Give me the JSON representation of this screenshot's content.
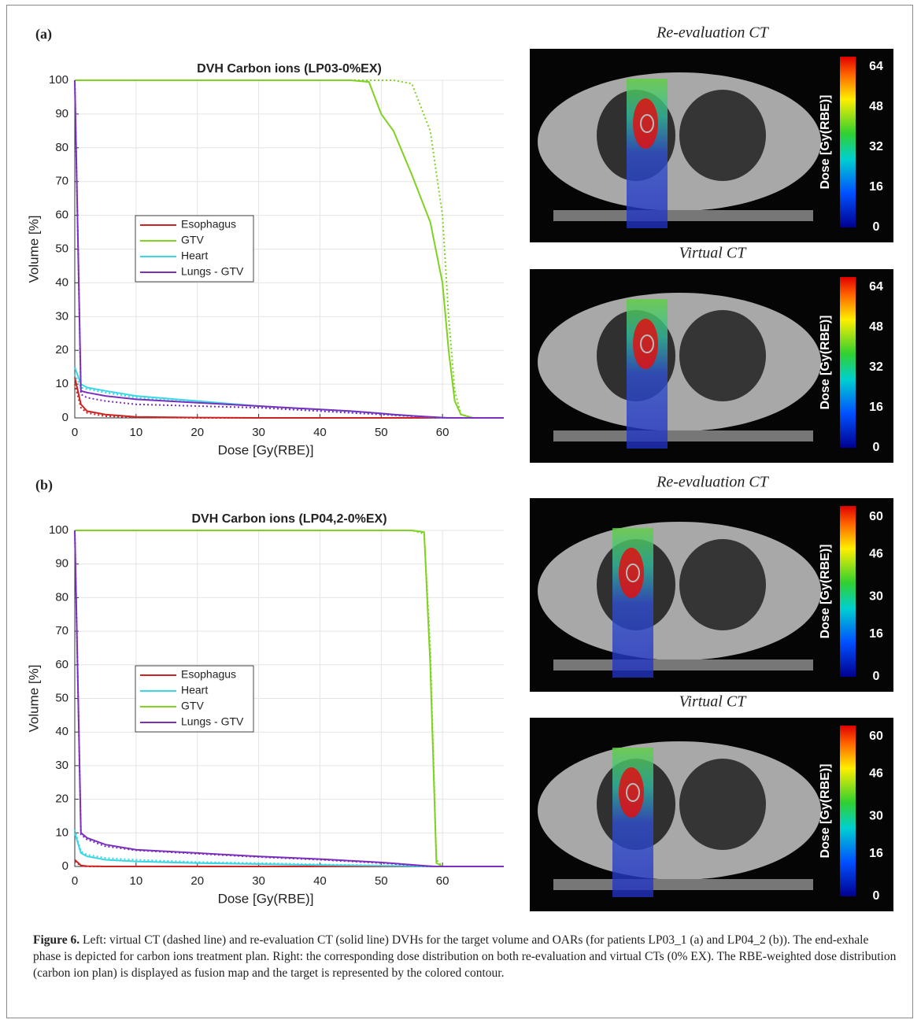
{
  "panels": [
    {
      "label": "(a)",
      "chart_data": {
        "type": "line",
        "title": "DVH Carbon ions (LP03-0%EX)",
        "xlabel": "Dose [Gy(RBE)]",
        "ylabel": "Volume [%]",
        "x": [
          0,
          1,
          2,
          5,
          10,
          20,
          30,
          40,
          45,
          48,
          50,
          52,
          55,
          58,
          60,
          61,
          62,
          63,
          65,
          70
        ],
        "xlim": [
          0,
          70
        ],
        "ylim": [
          0,
          100
        ],
        "xticks": [
          0,
          10,
          20,
          30,
          40,
          50,
          60
        ],
        "yticks": [
          0,
          10,
          20,
          30,
          40,
          50,
          60,
          70,
          80,
          90,
          100
        ],
        "grid": true,
        "series": [
          {
            "name": "Esophagus",
            "color": "#cc2222",
            "values": [
              12,
              4,
              2,
              1,
              0.3,
              0.1,
              0,
              0,
              0,
              0,
              0,
              0,
              0,
              0,
              0,
              0,
              0,
              0,
              0,
              0
            ],
            "dashed_values": [
              10,
              3,
              1.5,
              0.5,
              0.2,
              0,
              0,
              0,
              0,
              0,
              0,
              0,
              0,
              0,
              0,
              0,
              0,
              0,
              0,
              0
            ]
          },
          {
            "name": "GTV",
            "color": "#7ed321",
            "values": [
              100,
              100,
              100,
              100,
              100,
              100,
              100,
              100,
              100,
              99.5,
              90,
              85,
              72,
              58,
              40,
              20,
              5,
              1,
              0,
              0
            ],
            "dashed_values": [
              100,
              100,
              100,
              100,
              100,
              100,
              100,
              100,
              100,
              100,
              100,
              100,
              99,
              85,
              60,
              30,
              8,
              1,
              0,
              0
            ]
          },
          {
            "name": "Heart",
            "color": "#3ad6e6",
            "values": [
              15,
              10,
              9,
              8,
              6.5,
              5,
              3.5,
              2.5,
              2,
              1.6,
              1.3,
              1,
              0.6,
              0.2,
              0,
              0,
              0,
              0,
              0,
              0
            ],
            "dashed_values": [
              13,
              9,
              8.5,
              7.5,
              6,
              4.5,
              3.5,
              2.3,
              1.8,
              1.4,
              1.1,
              0.8,
              0.5,
              0.2,
              0,
              0,
              0,
              0,
              0,
              0
            ]
          },
          {
            "name": "Lungs - GTV",
            "color": "#7b2fbf",
            "values": [
              100,
              8,
              7.5,
              6.5,
              5.5,
              4.5,
              3.5,
              2.5,
              2,
              1.6,
              1.3,
              1,
              0.6,
              0.3,
              0.1,
              0,
              0,
              0,
              0,
              0
            ],
            "dashed_values": [
              100,
              7,
              6,
              5,
              4,
              3.5,
              3,
              2,
              1.5,
              1.2,
              1,
              0.8,
              0.5,
              0.2,
              0,
              0,
              0,
              0,
              0,
              0
            ]
          }
        ]
      },
      "images": [
        {
          "title": "Re-evaluation CT",
          "colorbar": {
            "label": "Dose [Gy(RBE)]",
            "lim": [
              0,
              68
            ],
            "ticks": [
              0,
              16,
              32,
              48,
              64
            ]
          }
        },
        {
          "title": "Virtual CT",
          "colorbar": {
            "label": "Dose [Gy(RBE)]",
            "lim": [
              0,
              68
            ],
            "ticks": [
              0,
              16,
              32,
              48,
              64
            ]
          }
        }
      ]
    },
    {
      "label": "(b)",
      "chart_data": {
        "type": "line",
        "title": "DVH Carbon ions (LP04,2-0%EX)",
        "xlabel": "Dose [Gy(RBE)]",
        "ylabel": "Volume [%]",
        "x": [
          0,
          1,
          2,
          5,
          10,
          20,
          30,
          40,
          50,
          55,
          57,
          58,
          59,
          60,
          65,
          70
        ],
        "xlim": [
          0,
          70
        ],
        "ylim": [
          0,
          100
        ],
        "xticks": [
          0,
          10,
          20,
          30,
          40,
          50,
          60
        ],
        "yticks": [
          0,
          10,
          20,
          30,
          40,
          50,
          60,
          70,
          80,
          90,
          100
        ],
        "grid": true,
        "series": [
          {
            "name": "Esophagus",
            "color": "#cc2222",
            "values": [
              2,
              0.3,
              0.1,
              0,
              0,
              0,
              0,
              0,
              0,
              0,
              0,
              0,
              0,
              0,
              0,
              0
            ],
            "dashed_values": [
              1.5,
              0.2,
              0,
              0,
              0,
              0,
              0,
              0,
              0,
              0,
              0,
              0,
              0,
              0,
              0,
              0
            ]
          },
          {
            "name": "Heart",
            "color": "#3ad6e6",
            "values": [
              10,
              4,
              3,
              2,
              1.5,
              1,
              0.7,
              0.4,
              0.2,
              0.1,
              0,
              0,
              0,
              0,
              0,
              0
            ],
            "dashed_values": [
              11,
              4.5,
              3.5,
              2.5,
              2,
              1.3,
              1,
              0.6,
              0.3,
              0.1,
              0,
              0,
              0,
              0,
              0,
              0
            ]
          },
          {
            "name": "GTV",
            "color": "#7ed321",
            "values": [
              100,
              100,
              100,
              100,
              100,
              100,
              100,
              100,
              100,
              100,
              99.5,
              60,
              1,
              0,
              0,
              0
            ],
            "dashed_values": [
              100,
              100,
              100,
              100,
              100,
              100,
              100,
              100,
              100,
              100,
              99,
              65,
              2,
              0,
              0,
              0
            ]
          },
          {
            "name": "Lungs - GTV",
            "color": "#7b2fbf",
            "values": [
              100,
              10,
              8.5,
              6.5,
              5,
              4,
              3,
              2.2,
              1.2,
              0.5,
              0.2,
              0.1,
              0,
              0,
              0,
              0
            ],
            "dashed_values": [
              100,
              9.5,
              8,
              6,
              4.8,
              3.8,
              2.8,
              2,
              1,
              0.4,
              0.1,
              0,
              0,
              0,
              0,
              0
            ]
          }
        ]
      },
      "images": [
        {
          "title": "Re-evaluation CT",
          "colorbar": {
            "label": "Dose [Gy(RBE)]",
            "lim": [
              0,
              64
            ],
            "ticks": [
              0,
              16,
              30,
              46,
              60
            ]
          }
        },
        {
          "title": "Virtual CT",
          "colorbar": {
            "label": "Dose [Gy(RBE)]",
            "lim": [
              0,
              64
            ],
            "ticks": [
              0,
              16,
              30,
              46,
              60
            ]
          }
        }
      ]
    }
  ],
  "caption": {
    "label": "Figure 6.",
    "text": "Left: virtual CT (dashed line) and re-evaluation CT (solid line) DVHs for the target volume and OARs (for patients LP03_1 (a) and LP04_2 (b)). The end-exhale phase is depicted for carbon ions treatment plan. Right: the corresponding dose distribution on both re-evaluation and virtual CTs (0% EX). The RBE-weighted dose distribution (carbon ion plan) is displayed as fusion map and the target is represented by the colored contour."
  }
}
